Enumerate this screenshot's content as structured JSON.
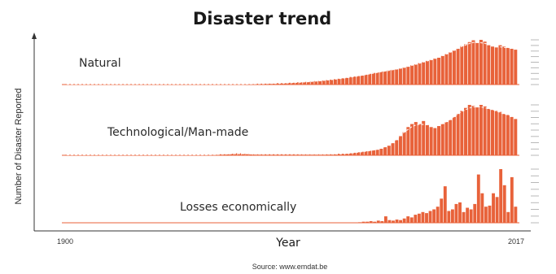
{
  "chart_data": {
    "type": "bar",
    "title": "Disaster trend",
    "xlabel": "Year",
    "ylabel": "Number of Disaster Reported",
    "x_start_label": "1900",
    "x_end_label": "2017",
    "source": "Source: www.emdat.be",
    "bar_color": "#e8623a",
    "trend_color": "#ffffff",
    "axis_color": "#333333",
    "panels": [
      {
        "name": "Natural",
        "label": "Natural",
        "values": [
          0.01,
          0.01,
          0.01,
          0.01,
          0.01,
          0.01,
          0.01,
          0.01,
          0.01,
          0.01,
          0.01,
          0.01,
          0.01,
          0.01,
          0.01,
          0.01,
          0.01,
          0.01,
          0.01,
          0.01,
          0.01,
          0.01,
          0.01,
          0.01,
          0.01,
          0.01,
          0.01,
          0.01,
          0.01,
          0.01,
          0.01,
          0.01,
          0.01,
          0.01,
          0.01,
          0.01,
          0.01,
          0.01,
          0.01,
          0.01,
          0.01,
          0.01,
          0.01,
          0.01,
          0.01,
          0.01,
          0.01,
          0.01,
          0.01,
          0.01,
          0.02,
          0.02,
          0.02,
          0.02,
          0.02,
          0.03,
          0.03,
          0.03,
          0.04,
          0.04,
          0.05,
          0.05,
          0.06,
          0.06,
          0.07,
          0.08,
          0.08,
          0.09,
          0.1,
          0.11,
          0.12,
          0.13,
          0.14,
          0.15,
          0.17,
          0.18,
          0.19,
          0.2,
          0.22,
          0.24,
          0.26,
          0.27,
          0.29,
          0.3,
          0.32,
          0.33,
          0.34,
          0.36,
          0.38,
          0.4,
          0.43,
          0.45,
          0.48,
          0.5,
          0.53,
          0.55,
          0.58,
          0.6,
          0.64,
          0.68,
          0.72,
          0.76,
          0.8,
          0.86,
          0.9,
          0.95,
          0.99,
          0.93,
          1.0,
          0.96,
          0.88,
          0.85,
          0.83,
          0.88,
          0.85,
          0.82,
          0.8,
          0.78
        ]
      },
      {
        "name": "Technological/Man-made",
        "label": "Technological/Man-made",
        "values": [
          0.01,
          0.01,
          0.01,
          0.01,
          0.01,
          0.01,
          0.01,
          0.01,
          0.01,
          0.01,
          0.01,
          0.01,
          0.01,
          0.01,
          0.01,
          0.01,
          0.01,
          0.01,
          0.01,
          0.01,
          0.01,
          0.01,
          0.01,
          0.01,
          0.01,
          0.01,
          0.01,
          0.01,
          0.01,
          0.01,
          0.01,
          0.01,
          0.01,
          0.01,
          0.01,
          0.01,
          0.01,
          0.01,
          0.01,
          0.01,
          0.02,
          0.02,
          0.02,
          0.03,
          0.04,
          0.04,
          0.03,
          0.03,
          0.02,
          0.02,
          0.02,
          0.02,
          0.02,
          0.02,
          0.02,
          0.02,
          0.02,
          0.02,
          0.02,
          0.02,
          0.02,
          0.02,
          0.02,
          0.02,
          0.02,
          0.02,
          0.02,
          0.02,
          0.02,
          0.02,
          0.02,
          0.03,
          0.03,
          0.03,
          0.04,
          0.05,
          0.06,
          0.07,
          0.08,
          0.09,
          0.1,
          0.11,
          0.13,
          0.16,
          0.19,
          0.24,
          0.3,
          0.38,
          0.46,
          0.56,
          0.62,
          0.66,
          0.62,
          0.68,
          0.6,
          0.56,
          0.54,
          0.58,
          0.62,
          0.66,
          0.7,
          0.76,
          0.82,
          0.88,
          0.94,
          1.0,
          0.98,
          0.95,
          1.0,
          0.97,
          0.92,
          0.9,
          0.88,
          0.86,
          0.82,
          0.8,
          0.76,
          0.72
        ]
      },
      {
        "name": "Losses economically",
        "label": "Losses economically",
        "values": [
          0.0,
          0.0,
          0.0,
          0.0,
          0.0,
          0.0,
          0.0,
          0.0,
          0.0,
          0.0,
          0.0,
          0.0,
          0.0,
          0.0,
          0.0,
          0.0,
          0.0,
          0.0,
          0.0,
          0.0,
          0.0,
          0.0,
          0.0,
          0.0,
          0.0,
          0.0,
          0.0,
          0.0,
          0.0,
          0.0,
          0.0,
          0.0,
          0.0,
          0.0,
          0.0,
          0.0,
          0.0,
          0.0,
          0.0,
          0.0,
          0.0,
          0.0,
          0.0,
          0.0,
          0.0,
          0.0,
          0.0,
          0.0,
          0.0,
          0.0,
          0.0,
          0.0,
          0.0,
          0.0,
          0.0,
          0.0,
          0.0,
          0.0,
          0.0,
          0.0,
          0.0,
          0.0,
          0.0,
          0.0,
          0.0,
          0.0,
          0.0,
          0.0,
          0.0,
          0.0,
          0.0,
          0.0,
          0.0,
          0.0,
          0.0,
          0.0,
          0.0,
          0.0,
          0.0,
          0.01,
          0.02,
          0.02,
          0.03,
          0.02,
          0.04,
          0.03,
          0.12,
          0.05,
          0.04,
          0.06,
          0.05,
          0.08,
          0.12,
          0.1,
          0.15,
          0.17,
          0.2,
          0.18,
          0.22,
          0.25,
          0.3,
          0.45,
          0.68,
          0.22,
          0.25,
          0.35,
          0.38,
          0.2,
          0.28,
          0.25,
          0.35,
          0.9,
          0.55,
          0.3,
          0.32,
          0.55,
          0.48,
          1.0,
          0.7,
          0.2,
          0.85,
          0.3
        ]
      }
    ]
  }
}
